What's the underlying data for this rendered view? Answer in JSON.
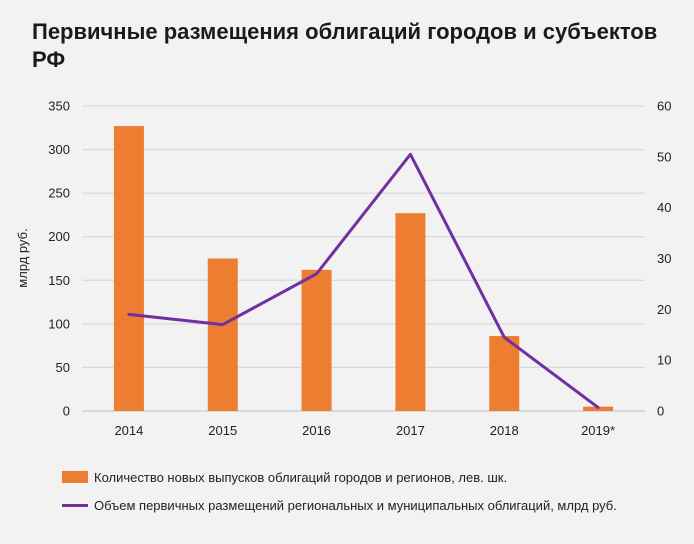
{
  "chart_data": {
    "type": "bar+line",
    "title": "Первичные размещения облигаций городов и субъектов РФ",
    "ylabel_left": "млрд руб.",
    "ylim_left": [
      0,
      350
    ],
    "yticks_left": [
      "0",
      "50",
      "100",
      "150",
      "200",
      "250",
      "300",
      "350"
    ],
    "ylim_right": [
      0,
      60
    ],
    "yticks_right": [
      "0",
      "10",
      "20",
      "30",
      "40",
      "50",
      "60"
    ],
    "categories": [
      "2014",
      "2015",
      "2016",
      "2017",
      "2018",
      "2019*"
    ],
    "series": [
      {
        "name": "Количество новых выпусков облигаций городов и регионов, лев. шк.",
        "type": "bar",
        "axis": "left",
        "color": "#ed7d31",
        "values": [
          327,
          175,
          162,
          227,
          86,
          5
        ]
      },
      {
        "name": "Объем первичных размещений региональных и муниципальных облигаций, млрд руб.",
        "type": "line",
        "axis": "right",
        "color": "#7030a0",
        "values": [
          19,
          17,
          27,
          50.5,
          14.5,
          0.7
        ]
      }
    ],
    "grid": true,
    "legend_position": "bottom"
  }
}
